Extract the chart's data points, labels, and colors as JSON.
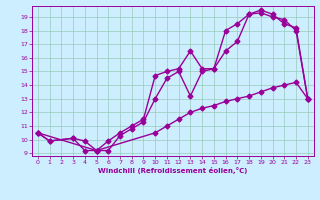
{
  "xlabel": "Windchill (Refroidissement éolien,°C)",
  "bg_color": "#cceeff",
  "line_color": "#990099",
  "grid_color": "#99ccbb",
  "xlim": [
    -0.5,
    23.5
  ],
  "ylim": [
    8.8,
    19.8
  ],
  "yticks": [
    9,
    10,
    11,
    12,
    13,
    14,
    15,
    16,
    17,
    18,
    19
  ],
  "xticks": [
    0,
    1,
    2,
    3,
    4,
    5,
    6,
    7,
    8,
    9,
    10,
    11,
    12,
    13,
    14,
    15,
    16,
    17,
    18,
    19,
    20,
    21,
    22,
    23
  ],
  "line1_x": [
    0,
    1,
    3,
    4,
    5,
    6,
    7,
    8,
    9,
    10,
    11,
    12,
    13,
    14,
    15,
    16,
    17,
    18,
    19,
    20,
    21,
    22,
    23
  ],
  "line1_y": [
    10.5,
    9.9,
    10.1,
    9.9,
    9.2,
    9.9,
    10.5,
    11.0,
    11.5,
    14.7,
    15.0,
    15.2,
    16.5,
    15.2,
    15.2,
    18.0,
    18.5,
    19.2,
    19.5,
    19.2,
    18.5,
    18.2,
    13.0
  ],
  "line2_x": [
    0,
    1,
    3,
    4,
    5,
    6,
    7,
    8,
    9,
    10,
    11,
    12,
    13,
    14,
    15,
    16,
    17,
    18,
    19,
    20,
    21,
    22,
    23
  ],
  "line2_y": [
    10.5,
    9.9,
    10.1,
    9.2,
    9.2,
    9.2,
    10.3,
    10.8,
    11.3,
    13.0,
    14.5,
    15.0,
    13.2,
    15.0,
    15.2,
    16.5,
    17.2,
    19.2,
    19.3,
    19.0,
    18.8,
    18.0,
    13.0
  ],
  "line3_x": [
    0,
    5,
    10,
    11,
    12,
    13,
    14,
    15,
    16,
    17,
    18,
    19,
    20,
    21,
    22,
    23
  ],
  "line3_y": [
    10.5,
    9.2,
    10.5,
    11.0,
    11.5,
    12.0,
    12.3,
    12.5,
    12.8,
    13.0,
    13.2,
    13.5,
    13.8,
    14.0,
    14.2,
    13.0
  ],
  "marker": "D",
  "marker_size": 2.5,
  "linewidth": 1.0
}
